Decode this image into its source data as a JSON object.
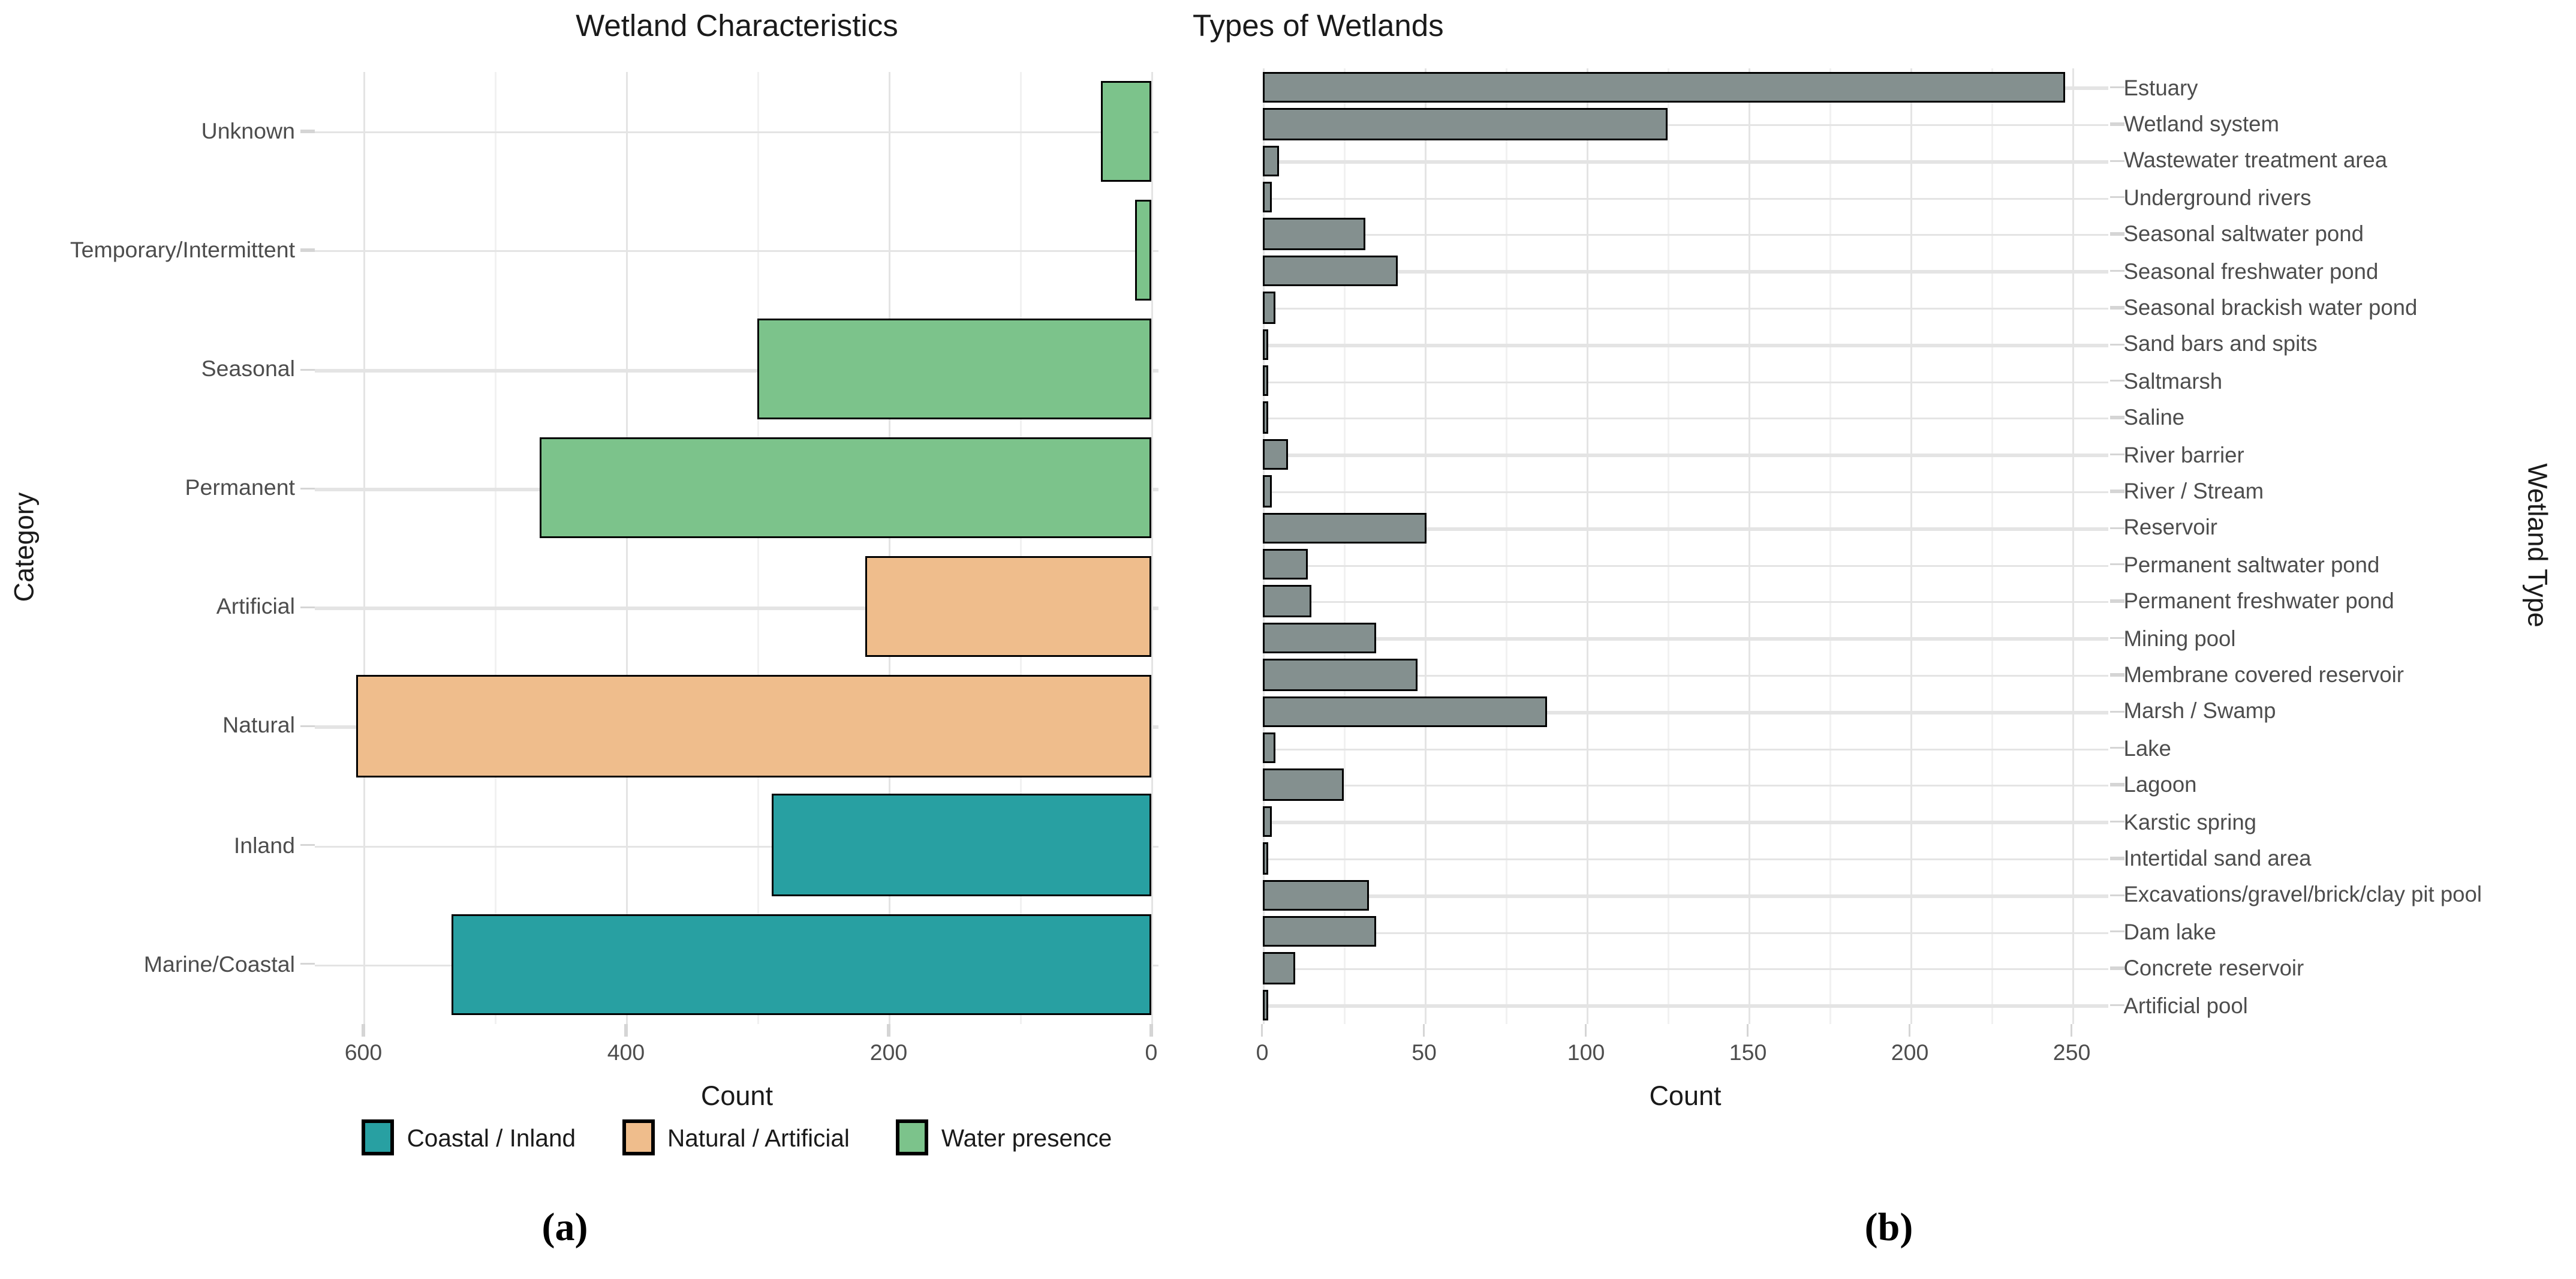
{
  "figure": {
    "panel_a_label": "(a)",
    "panel_b_label": "(b)"
  },
  "style": {
    "background": "#FFFFFF",
    "grid_major": "#E4E4E4",
    "grid_minor": "#F1F1F1",
    "tick_mark": "#D5D5D5",
    "tick_text": "#4D4D4D",
    "title_text": "#1A1A1A",
    "bar_outline": "#000000"
  },
  "chart_data": [
    {
      "type": "bar",
      "orientation": "horizontal",
      "title": "Wetland Characteristics",
      "xlabel": "Count",
      "ylabel": "Category",
      "ylabel_position": "left",
      "x_axis": {
        "ticks": [
          600,
          400,
          200,
          0
        ],
        "minor_ticks": [
          500,
          300,
          100
        ],
        "reversed": true,
        "max": 637
      },
      "grid": "on",
      "categories": [
        "Unknown",
        "Temporary/Intermittent",
        "Seasonal",
        "Permanent",
        "Artificial",
        "Natural",
        "Inland",
        "Marine/Coastal"
      ],
      "values": [
        38,
        13,
        300,
        466,
        218,
        606,
        289,
        533
      ],
      "series_of": [
        "water",
        "water",
        "water",
        "water",
        "natart",
        "natart",
        "coastal",
        "coastal"
      ],
      "legend": [
        {
          "id": "coastal",
          "label": "Coastal / Inland",
          "color": "#28A0A2"
        },
        {
          "id": "natart",
          "label": "Natural / Artificial",
          "color": "#EFBD8C"
        },
        {
          "id": "water",
          "label": "Water presence",
          "color": "#7CC38B"
        }
      ]
    },
    {
      "type": "bar",
      "orientation": "horizontal",
      "title": "Types of Wetlands",
      "xlabel": "Count",
      "ylabel": "Wetland Type",
      "ylabel_position": "right",
      "x_axis": {
        "ticks": [
          0,
          50,
          100,
          150,
          200,
          250
        ],
        "minor_ticks": [
          25,
          75,
          125,
          175,
          225
        ],
        "reversed": false,
        "max": 261
      },
      "grid": "on",
      "bar_color": "#84908F",
      "categories": [
        "Estuary",
        "Wetland system",
        "Wastewater treatment area",
        "Underground rivers",
        "Seasonal saltwater pond",
        "Seasonal freshwater pond",
        "Seasonal brackish water pond",
        "Sand bars and spits",
        "Saltmarsh",
        "Saline",
        "River barrier",
        "River / Stream",
        "Reservoir",
        "Permanent saltwater pond",
        "Permanent freshwater pond",
        "Mining pool",
        "Membrane covered reservoir",
        "Marsh / Swamp",
        "Lake",
        "Lagoon",
        "Karstic spring",
        "Intertidal sand area",
        "Excavations/gravel/brick/clay pit pool",
        "Dam lake",
        "Concrete reservoir",
        "Artificial pool"
      ],
      "values": [
        248,
        125,
        5,
        3,
        32,
        42,
        4,
        2,
        1,
        1,
        8,
        3,
        51,
        14,
        15,
        35,
        48,
        88,
        4,
        25,
        3,
        1,
        33,
        35,
        10,
        1
      ]
    }
  ]
}
